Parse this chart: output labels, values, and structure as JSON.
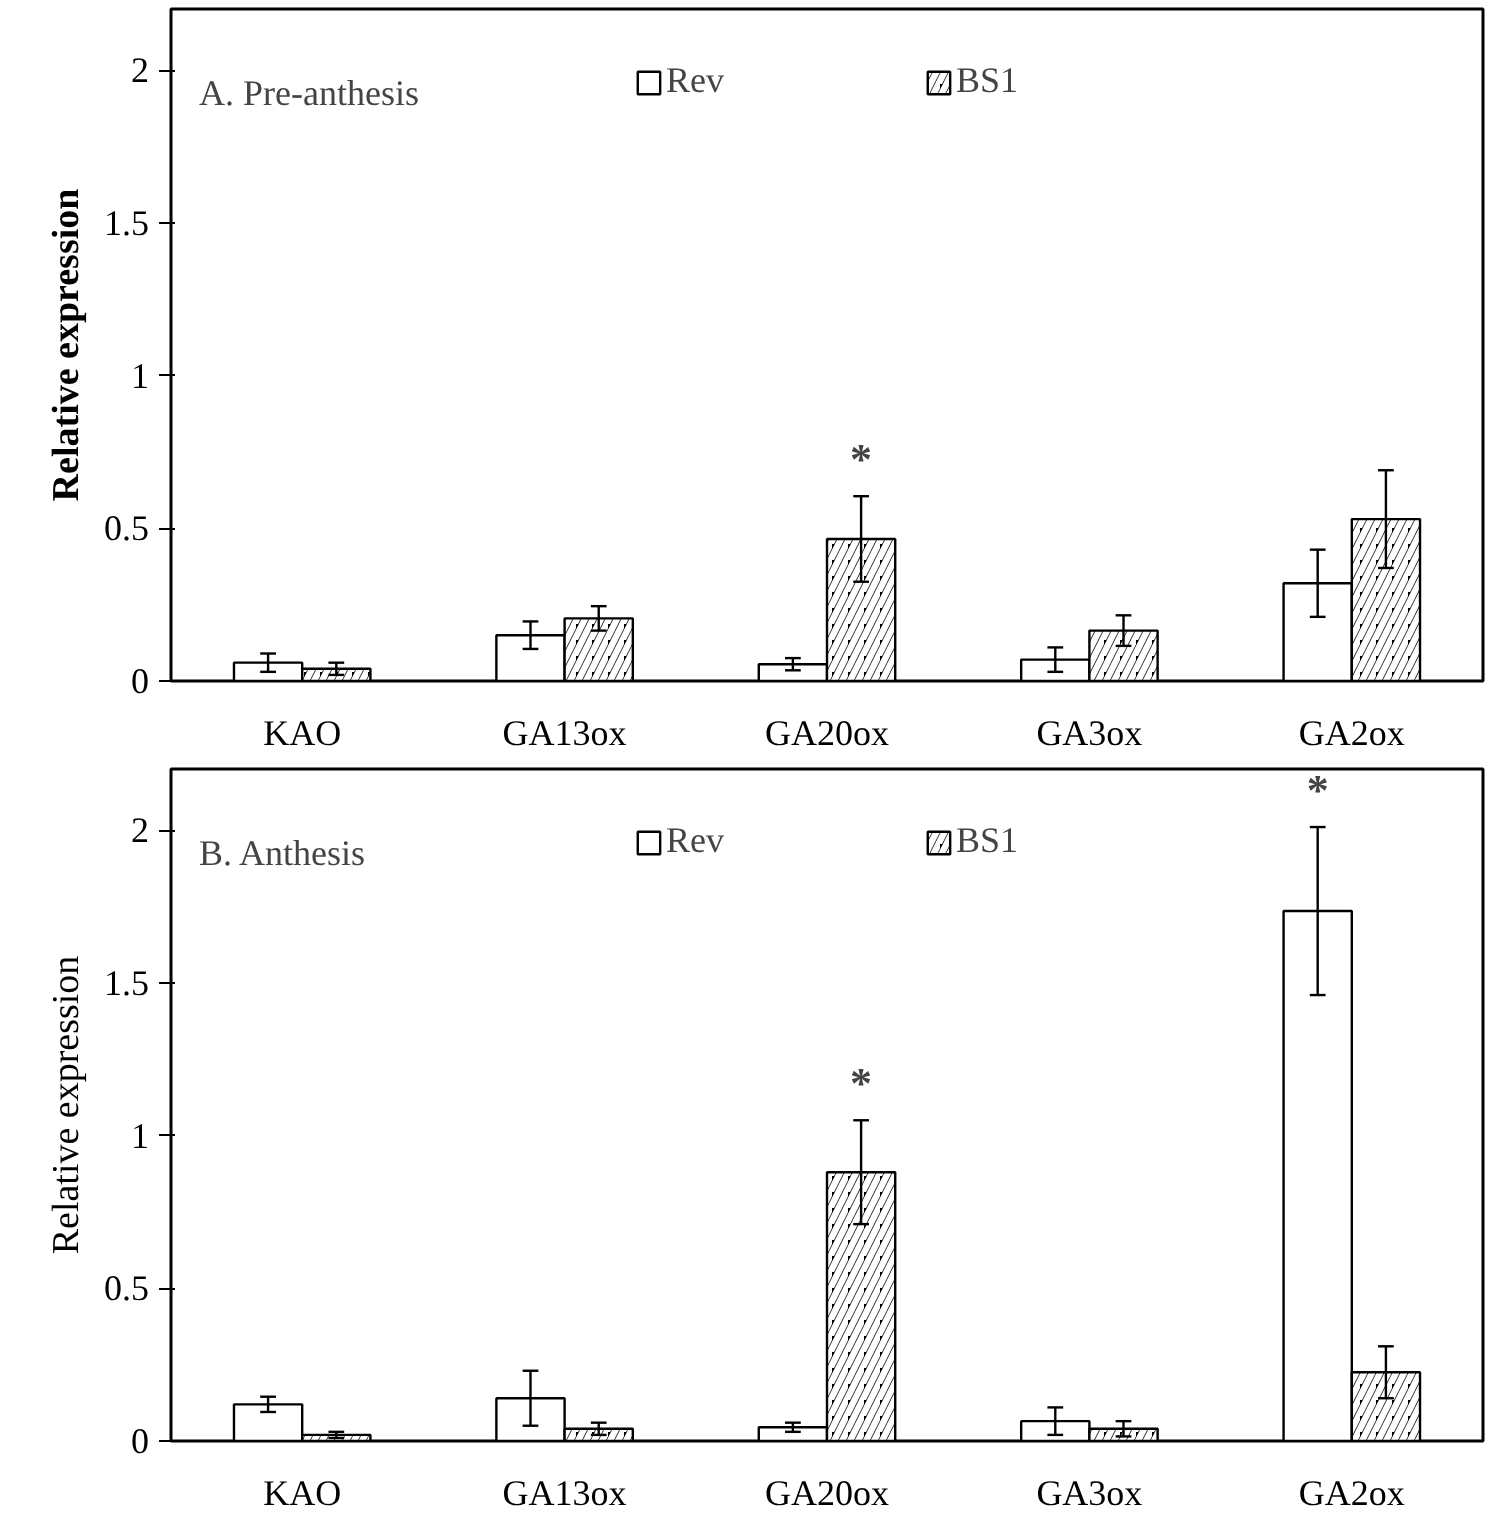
{
  "chart_data": [
    {
      "type": "bar",
      "title": "A. Pre-anthesis",
      "ylabel": "Relative expression",
      "categories": [
        "KAO",
        "GA13ox",
        "GA20ox",
        "GA3ox",
        "GA2ox"
      ],
      "ylim": [
        0,
        2.2
      ],
      "yticks": [
        0,
        0.5,
        1,
        {
          "value": 1.5,
          "label": "1.5"
        },
        2
      ],
      "grid": false,
      "legend": "top",
      "series": [
        {
          "name": "Rev",
          "color": "#ffffff",
          "values": [
            0.06,
            0.15,
            0.055,
            0.07,
            0.32
          ],
          "errors": [
            0.03,
            0.045,
            0.02,
            0.04,
            0.11
          ]
        },
        {
          "name": "BS1",
          "color": "#000000",
          "values": [
            0.04,
            0.205,
            0.465,
            0.165,
            0.53
          ],
          "errors": [
            0.02,
            0.04,
            0.14,
            0.05,
            0.16
          ]
        }
      ],
      "annotations": [
        {
          "text": "*",
          "x": "GA20ox",
          "y": 0.465
        }
      ]
    },
    {
      "type": "bar",
      "title": "B. Anthesis",
      "ylabel": "Relative expression",
      "categories": [
        "KAO",
        "GA13ox",
        "GA20ox",
        "GA3ox",
        "GA2ox"
      ],
      "ylim": [
        0,
        2.2
      ],
      "yticks": [
        0,
        0.5,
        1,
        {
          "value": 1.5,
          "label": "1.5"
        },
        2
      ],
      "grid": false,
      "legend": "top",
      "series": [
        {
          "name": "Rev",
          "color": "#ffffff",
          "values": [
            0.12,
            0.14,
            0.045,
            0.065,
            1.735
          ],
          "errors": [
            0.025,
            0.09,
            0.015,
            0.045,
            0.275
          ]
        },
        {
          "name": "BS1",
          "color": "#000000",
          "values": [
            0.02,
            0.04,
            0.88,
            0.04,
            0.225
          ],
          "errors": [
            0.01,
            0.02,
            0.17,
            0.025,
            0.085
          ]
        }
      ],
      "annotations": [
        {
          "text": "*",
          "x": "GA20ox",
          "y": 0.88
        },
        {
          "text": "*",
          "x": "GA2ox",
          "y": 1.735
        }
      ]
    }
  ]
}
